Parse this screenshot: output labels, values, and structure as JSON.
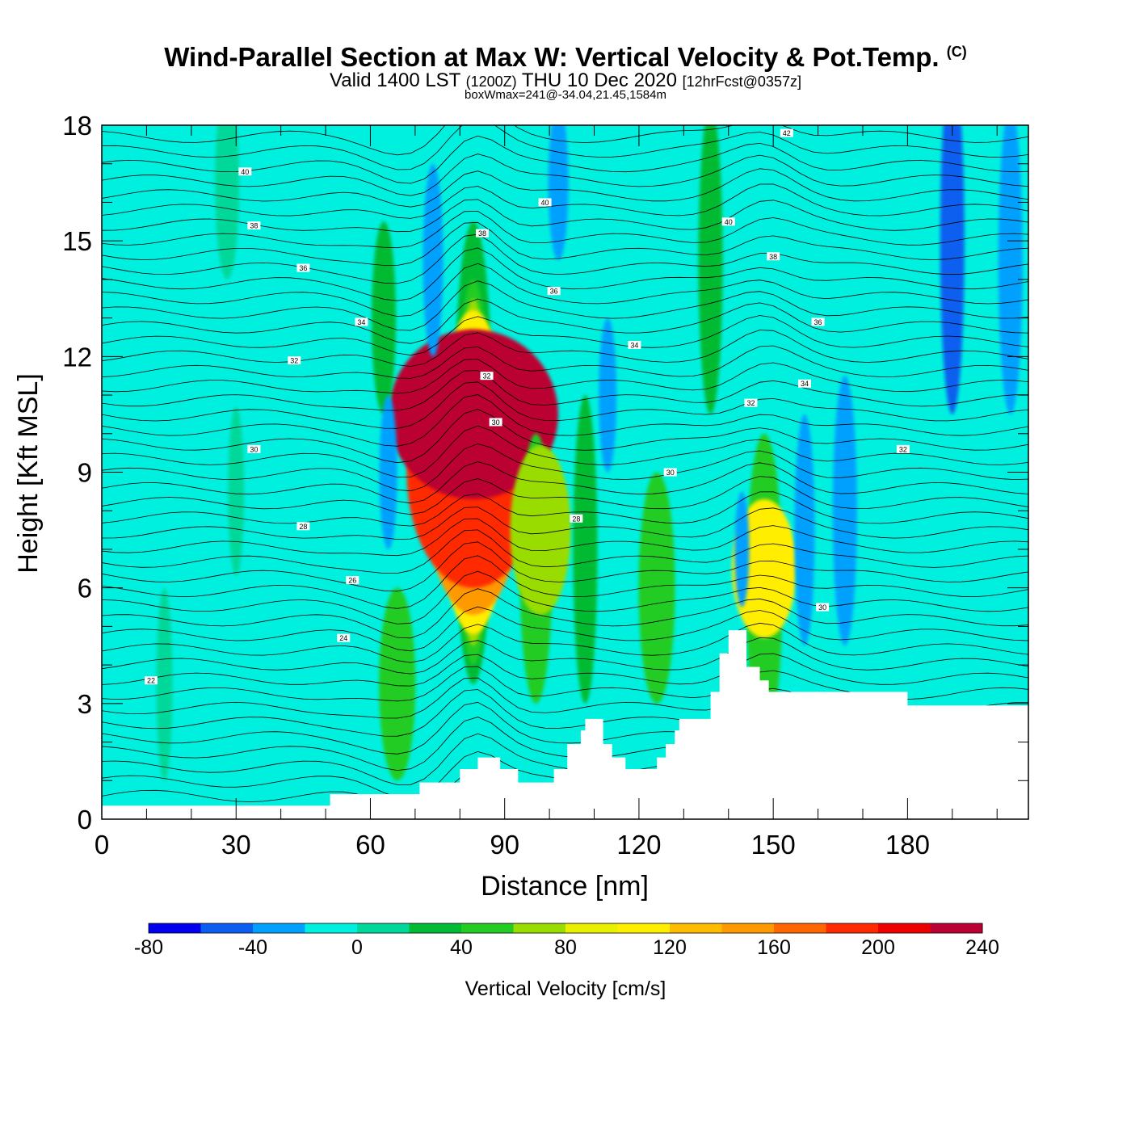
{
  "title": {
    "main": "Wind-Parallel Section at Max W: Vertical Velocity & Pot.Temp.",
    "mark": "(C)"
  },
  "subtitle": {
    "valid": "Valid 1400 LST",
    "utc": "(1200Z)",
    "date": "THU 10 Dec 2020",
    "fcst": "[12hrFcst@0357z]"
  },
  "box_line": "boxWmax=241@-34.04,21.45,1584m",
  "chart_data": {
    "type": "heatmap",
    "xlabel": "Distance [nm]",
    "ylabel": "Height [Kft MSL]",
    "xlim": [
      0,
      207
    ],
    "ylim": [
      0,
      18
    ],
    "xticks": [
      0,
      30,
      60,
      90,
      120,
      150,
      180
    ],
    "yticks": [
      0,
      3,
      6,
      9,
      12,
      15,
      18
    ],
    "colorbar": {
      "label": "Vertical Velocity [cm/s]",
      "ticks": [
        -80,
        -40,
        0,
        40,
        80,
        120,
        160,
        200,
        240
      ],
      "levels": [
        -80,
        -60,
        -40,
        -20,
        0,
        20,
        40,
        60,
        80,
        100,
        120,
        140,
        160,
        180,
        200,
        220,
        240
      ],
      "colors": [
        "#0000ee",
        "#0a5ef0",
        "#00a0ff",
        "#00f0e0",
        "#00d89a",
        "#00bb33",
        "#22cc22",
        "#99dd00",
        "#e8f000",
        "#ffee00",
        "#ffbb00",
        "#ff9900",
        "#ff6600",
        "#ff2a00",
        "#ee0000",
        "#bb0033"
      ]
    },
    "terrain_kft": [
      [
        0,
        0.35
      ],
      [
        51,
        0.35
      ],
      [
        51,
        0.65
      ],
      [
        71,
        0.65
      ],
      [
        71,
        0.95
      ],
      [
        80,
        0.95
      ],
      [
        80,
        1.3
      ],
      [
        84,
        1.3
      ],
      [
        84,
        1.6
      ],
      [
        89,
        1.6
      ],
      [
        89,
        1.3
      ],
      [
        93,
        1.3
      ],
      [
        93,
        0.95
      ],
      [
        101,
        0.95
      ],
      [
        101,
        1.3
      ],
      [
        104,
        1.3
      ],
      [
        104,
        1.95
      ],
      [
        107,
        1.95
      ],
      [
        107,
        2.3
      ],
      [
        108,
        2.3
      ],
      [
        108,
        2.6
      ],
      [
        112,
        2.6
      ],
      [
        112,
        1.95
      ],
      [
        114,
        1.95
      ],
      [
        114,
        1.6
      ],
      [
        117,
        1.6
      ],
      [
        117,
        1.3
      ],
      [
        124,
        1.3
      ],
      [
        124,
        1.6
      ],
      [
        126,
        1.6
      ],
      [
        126,
        1.95
      ],
      [
        128,
        1.95
      ],
      [
        128,
        2.3
      ],
      [
        129,
        2.3
      ],
      [
        129,
        2.6
      ],
      [
        136,
        2.6
      ],
      [
        136,
        3.3
      ],
      [
        138,
        3.3
      ],
      [
        138,
        4.3
      ],
      [
        140,
        4.3
      ],
      [
        140,
        4.9
      ],
      [
        144,
        4.9
      ],
      [
        144,
        3.95
      ],
      [
        147,
        3.95
      ],
      [
        147,
        3.6
      ],
      [
        149,
        3.6
      ],
      [
        149,
        3.3
      ],
      [
        180,
        3.3
      ],
      [
        180,
        2.95
      ],
      [
        207,
        2.95
      ]
    ],
    "w_cells": [
      {
        "x": 83,
        "y": 9.5,
        "w": 50,
        "h": 6,
        "v": 20
      },
      {
        "x": 83,
        "y": 9.0,
        "w": 45,
        "h": 5,
        "v": 40
      },
      {
        "x": 83,
        "y": 9.0,
        "w": 40,
        "h": 4.5,
        "v": 70
      },
      {
        "x": 83,
        "y": 9.0,
        "w": 90,
        "h": 4.2,
        "v": 100
      },
      {
        "x": 83,
        "y": 9.0,
        "w": 125,
        "h": 3.7,
        "v": 140
      },
      {
        "x": 83,
        "y": 9.0,
        "w": 165,
        "h": 3.0,
        "v": 180
      },
      {
        "x": 83,
        "y": 10.5,
        "w": 210,
        "h": 2.2,
        "v": 230
      },
      {
        "x": 97,
        "y": 6.5,
        "w": 40,
        "h": 3.5,
        "v": 45
      },
      {
        "x": 98,
        "y": 7.5,
        "w": 75,
        "h": 2.2,
        "v": 75
      },
      {
        "x": 148,
        "y": 6.0,
        "w": 45,
        "h": 4.0,
        "v": 45
      },
      {
        "x": 148,
        "y": 6.5,
        "w": 80,
        "h": 1.8,
        "v": 100
      },
      {
        "x": 66,
        "y": 3.5,
        "w": 45,
        "h": 2.5,
        "v": 45
      },
      {
        "x": 124,
        "y": 6.0,
        "w": 45,
        "h": 3.0,
        "v": 45
      },
      {
        "x": 108,
        "y": 7.0,
        "w": 30,
        "h": 4.0,
        "v": 30
      },
      {
        "x": 136,
        "y": 14.5,
        "w": 30,
        "h": 4.0,
        "v": 30
      },
      {
        "x": 63,
        "y": 13.0,
        "w": 30,
        "h": 2.5,
        "v": 25
      },
      {
        "x": 30,
        "y": 8.5,
        "w": 20,
        "h": 2.2,
        "v": 10
      },
      {
        "x": 28,
        "y": 16.5,
        "w": 30,
        "h": 2.5,
        "v": 10
      },
      {
        "x": 14,
        "y": 3.5,
        "w": 20,
        "h": 2.5,
        "v": 10
      },
      {
        "x": 190,
        "y": 15.0,
        "w": 30,
        "h": 4.5,
        "v": -55
      },
      {
        "x": 203,
        "y": 14.5,
        "w": 30,
        "h": 4.0,
        "v": -30
      },
      {
        "x": 166,
        "y": 8.0,
        "w": 30,
        "h": 3.5,
        "v": -40
      },
      {
        "x": 157,
        "y": 7.5,
        "w": 25,
        "h": 3.0,
        "v": -25
      },
      {
        "x": 102,
        "y": 16.5,
        "w": 25,
        "h": 2.0,
        "v": -40
      },
      {
        "x": 74,
        "y": 14.5,
        "w": 25,
        "h": 2.5,
        "v": -25
      },
      {
        "x": 64,
        "y": 9.0,
        "w": 22,
        "h": 2.0,
        "v": -25
      },
      {
        "x": 113,
        "y": 11.0,
        "w": 22,
        "h": 2.0,
        "v": -25
      },
      {
        "x": 143,
        "y": 7.0,
        "w": 18,
        "h": 1.5,
        "v": -30
      }
    ],
    "theta_labels": [
      {
        "text": "22",
        "x": 11,
        "y": 3.6
      },
      {
        "text": "24",
        "x": 54,
        "y": 4.7
      },
      {
        "text": "26",
        "x": 56,
        "y": 6.2
      },
      {
        "text": "28",
        "x": 45,
        "y": 7.6
      },
      {
        "text": "30",
        "x": 34,
        "y": 9.6
      },
      {
        "text": "32",
        "x": 43,
        "y": 11.9
      },
      {
        "text": "34",
        "x": 58,
        "y": 12.9
      },
      {
        "text": "36",
        "x": 45,
        "y": 14.3
      },
      {
        "text": "38",
        "x": 34,
        "y": 15.4
      },
      {
        "text": "40",
        "x": 32,
        "y": 16.8
      },
      {
        "text": "38",
        "x": 85,
        "y": 15.2
      },
      {
        "text": "36",
        "x": 101,
        "y": 13.7
      },
      {
        "text": "40",
        "x": 99,
        "y": 16.0
      },
      {
        "text": "34",
        "x": 119,
        "y": 12.3
      },
      {
        "text": "32",
        "x": 86,
        "y": 11.5
      },
      {
        "text": "30",
        "x": 88,
        "y": 10.3
      },
      {
        "text": "30",
        "x": 127,
        "y": 9.0
      },
      {
        "text": "28",
        "x": 106,
        "y": 7.8
      },
      {
        "text": "40",
        "x": 140,
        "y": 15.5
      },
      {
        "text": "42",
        "x": 153,
        "y": 17.8
      },
      {
        "text": "38",
        "x": 150,
        "y": 14.6
      },
      {
        "text": "36",
        "x": 160,
        "y": 12.9
      },
      {
        "text": "34",
        "x": 157,
        "y": 11.3
      },
      {
        "text": "32",
        "x": 145,
        "y": 10.8
      },
      {
        "text": "32",
        "x": 179,
        "y": 9.6
      },
      {
        "text": "30",
        "x": 161,
        "y": 5.5
      }
    ]
  }
}
